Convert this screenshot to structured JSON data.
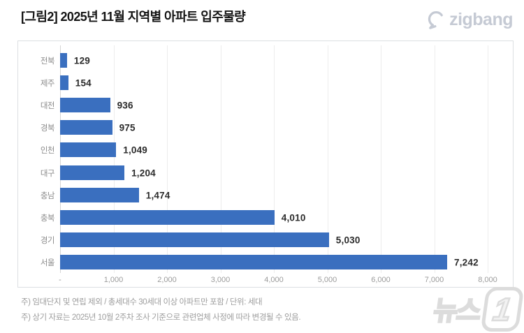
{
  "header": {
    "title": "[그림2] 2025년 11월 지역별 아파트 입주물량",
    "logo": {
      "name": "zigbang",
      "text": "zigbang",
      "color": "#c5cad4"
    }
  },
  "chart_data": {
    "type": "bar",
    "orientation": "horizontal",
    "title": "[그림2] 2025년 11월 지역별 아파트 입주물량",
    "categories": [
      "전북",
      "제주",
      "대전",
      "경북",
      "인천",
      "대구",
      "충남",
      "충북",
      "경기",
      "서울"
    ],
    "values": [
      129,
      154,
      936,
      975,
      1049,
      1204,
      1474,
      4010,
      5030,
      7242
    ],
    "value_labels": [
      "129",
      "154",
      "936",
      "975",
      "1,049",
      "1,204",
      "1,474",
      "4,010",
      "5,030",
      "7,242"
    ],
    "x_ticks": [
      "-",
      "1,000",
      "2,000",
      "3,000",
      "4,000",
      "5,000",
      "6,000",
      "7,000",
      "8,000"
    ],
    "xlim": [
      0,
      8000
    ],
    "xlabel": "",
    "ylabel": "",
    "grid": true,
    "legend": null,
    "bar_color": "#3a6fbf",
    "unit": "세대"
  },
  "footnotes": {
    "line1": "주) 임대단지 및 연립 제외 / 총세대수 30세대 이상 아파트만 포함 / 단위: 세대",
    "line2": "주) 상기 자료는 2025년 10월 2주차 조사 기준으로 관련업체 사정에 따라 변경될 수 있음."
  },
  "watermark": {
    "text": "뉴스",
    "badge": "1"
  }
}
